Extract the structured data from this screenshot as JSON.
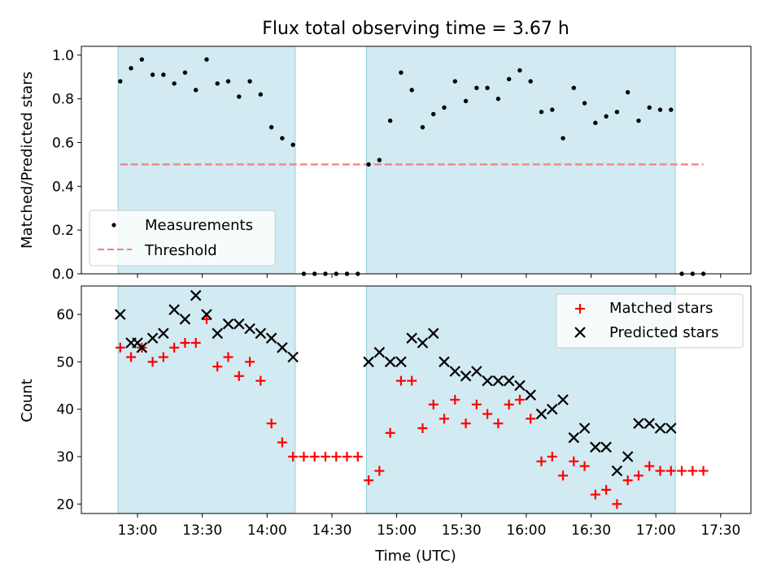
{
  "title": "Flux total observing time = 3.67 h",
  "chart_data": [
    {
      "type": "scatter",
      "panel": "top",
      "ylabel": "Matched/Predicted stars",
      "ylim": [
        0.0,
        1.04
      ],
      "yticks": [
        0.0,
        0.2,
        0.4,
        0.6,
        0.8,
        1.0
      ],
      "ytick_labels": [
        "0.0",
        "0.2",
        "0.4",
        "0.6",
        "0.8",
        "1.0"
      ],
      "legend": {
        "position": "lower-left",
        "entries": [
          "Measurements",
          "Threshold"
        ]
      },
      "series": [
        {
          "name": "Measurements",
          "color": "#000000",
          "points": [
            [
              "12:52",
              0.88
            ],
            [
              "12:57",
              0.94
            ],
            [
              "13:02",
              0.98
            ],
            [
              "13:07",
              0.91
            ],
            [
              "13:12",
              0.91
            ],
            [
              "13:17",
              0.87
            ],
            [
              "13:22",
              0.92
            ],
            [
              "13:27",
              0.84
            ],
            [
              "13:32",
              0.98
            ],
            [
              "13:37",
              0.87
            ],
            [
              "13:42",
              0.88
            ],
            [
              "13:47",
              0.81
            ],
            [
              "13:52",
              0.88
            ],
            [
              "13:57",
              0.82
            ],
            [
              "14:02",
              0.67
            ],
            [
              "14:07",
              0.62
            ],
            [
              "14:12",
              0.59
            ],
            [
              "14:17",
              0.0
            ],
            [
              "14:22",
              0.0
            ],
            [
              "14:27",
              0.0
            ],
            [
              "14:32",
              0.0
            ],
            [
              "14:37",
              0.0
            ],
            [
              "14:42",
              0.0
            ],
            [
              "14:47",
              0.5
            ],
            [
              "14:52",
              0.52
            ],
            [
              "14:57",
              0.7
            ],
            [
              "15:02",
              0.92
            ],
            [
              "15:07",
              0.84
            ],
            [
              "15:12",
              0.67
            ],
            [
              "15:17",
              0.73
            ],
            [
              "15:22",
              0.76
            ],
            [
              "15:27",
              0.88
            ],
            [
              "15:32",
              0.79
            ],
            [
              "15:37",
              0.85
            ],
            [
              "15:42",
              0.85
            ],
            [
              "15:47",
              0.8
            ],
            [
              "15:52",
              0.89
            ],
            [
              "15:57",
              0.93
            ],
            [
              "16:02",
              0.88
            ],
            [
              "16:07",
              0.74
            ],
            [
              "16:12",
              0.75
            ],
            [
              "16:17",
              0.62
            ],
            [
              "16:22",
              0.85
            ],
            [
              "16:27",
              0.78
            ],
            [
              "16:32",
              0.69
            ],
            [
              "16:37",
              0.72
            ],
            [
              "16:42",
              0.74
            ],
            [
              "16:47",
              0.83
            ],
            [
              "16:52",
              0.7
            ],
            [
              "16:57",
              0.76
            ],
            [
              "17:02",
              0.75
            ],
            [
              "17:07",
              0.75
            ],
            [
              "17:12",
              0.0
            ],
            [
              "17:17",
              0.0
            ],
            [
              "17:22",
              0.0
            ]
          ]
        }
      ],
      "threshold": {
        "name": "Threshold",
        "value": 0.5,
        "x_start": "12:52",
        "x_end": "17:22",
        "color": "#f08080",
        "style": "dashed"
      }
    },
    {
      "type": "scatter",
      "panel": "bottom",
      "xlabel": "Time (UTC)",
      "ylabel": "Count",
      "ylim": [
        18,
        66
      ],
      "yticks": [
        20,
        30,
        40,
        50,
        60
      ],
      "ytick_labels": [
        "20",
        "30",
        "40",
        "50",
        "60"
      ],
      "xlim": [
        "12:34",
        "17:44"
      ],
      "xticks": [
        "13:00",
        "13:30",
        "14:00",
        "14:30",
        "15:00",
        "15:30",
        "16:00",
        "16:30",
        "17:00",
        "17:30"
      ],
      "legend": {
        "position": "top-right",
        "entries": [
          "Matched stars",
          "Predicted stars"
        ]
      },
      "series": [
        {
          "name": "Matched stars",
          "marker": "+",
          "color": "#ff0000",
          "points": [
            [
              "12:52",
              53
            ],
            [
              "12:57",
              51
            ],
            [
              "13:02",
              53
            ],
            [
              "13:07",
              50
            ],
            [
              "13:12",
              51
            ],
            [
              "13:17",
              53
            ],
            [
              "13:22",
              54
            ],
            [
              "13:27",
              54
            ],
            [
              "13:32",
              59
            ],
            [
              "13:37",
              49
            ],
            [
              "13:42",
              51
            ],
            [
              "13:47",
              47
            ],
            [
              "13:52",
              50
            ],
            [
              "13:57",
              46
            ],
            [
              "14:02",
              37
            ],
            [
              "14:07",
              33
            ],
            [
              "14:12",
              30
            ],
            [
              "14:17",
              30
            ],
            [
              "14:22",
              30
            ],
            [
              "14:27",
              30
            ],
            [
              "14:32",
              30
            ],
            [
              "14:37",
              30
            ],
            [
              "14:42",
              30
            ],
            [
              "14:47",
              25
            ],
            [
              "14:52",
              27
            ],
            [
              "14:57",
              35
            ],
            [
              "15:02",
              46
            ],
            [
              "15:07",
              46
            ],
            [
              "15:12",
              36
            ],
            [
              "15:17",
              41
            ],
            [
              "15:22",
              38
            ],
            [
              "15:27",
              42
            ],
            [
              "15:32",
              37
            ],
            [
              "15:37",
              41
            ],
            [
              "15:42",
              39
            ],
            [
              "15:47",
              37
            ],
            [
              "15:52",
              41
            ],
            [
              "15:57",
              42
            ],
            [
              "16:02",
              38
            ],
            [
              "16:07",
              29
            ],
            [
              "16:12",
              30
            ],
            [
              "16:17",
              26
            ],
            [
              "16:22",
              29
            ],
            [
              "16:27",
              28
            ],
            [
              "16:32",
              22
            ],
            [
              "16:37",
              23
            ],
            [
              "16:42",
              20
            ],
            [
              "16:47",
              25
            ],
            [
              "16:52",
              26
            ],
            [
              "16:57",
              28
            ],
            [
              "17:02",
              27
            ],
            [
              "17:07",
              27
            ],
            [
              "17:12",
              27
            ],
            [
              "17:17",
              27
            ],
            [
              "17:22",
              27
            ]
          ]
        },
        {
          "name": "Predicted stars",
          "marker": "x",
          "color": "#000000",
          "points": [
            [
              "12:52",
              60
            ],
            [
              "12:57",
              54
            ],
            [
              "13:00",
              54
            ],
            [
              "13:02",
              53
            ],
            [
              "13:07",
              55
            ],
            [
              "13:12",
              56
            ],
            [
              "13:17",
              61
            ],
            [
              "13:22",
              59
            ],
            [
              "13:27",
              64
            ],
            [
              "13:32",
              60
            ],
            [
              "13:37",
              56
            ],
            [
              "13:42",
              58
            ],
            [
              "13:47",
              58
            ],
            [
              "13:52",
              57
            ],
            [
              "13:57",
              56
            ],
            [
              "14:02",
              55
            ],
            [
              "14:07",
              53
            ],
            [
              "14:12",
              51
            ],
            [
              "14:47",
              50
            ],
            [
              "14:52",
              52
            ],
            [
              "14:57",
              50
            ],
            [
              "15:02",
              50
            ],
            [
              "15:07",
              55
            ],
            [
              "15:12",
              54
            ],
            [
              "15:17",
              56
            ],
            [
              "15:22",
              50
            ],
            [
              "15:27",
              48
            ],
            [
              "15:32",
              47
            ],
            [
              "15:37",
              48
            ],
            [
              "15:42",
              46
            ],
            [
              "15:47",
              46
            ],
            [
              "15:52",
              46
            ],
            [
              "15:57",
              45
            ],
            [
              "16:02",
              43
            ],
            [
              "16:07",
              39
            ],
            [
              "16:12",
              40
            ],
            [
              "16:17",
              42
            ],
            [
              "16:22",
              34
            ],
            [
              "16:27",
              36
            ],
            [
              "16:32",
              32
            ],
            [
              "16:37",
              32
            ],
            [
              "16:42",
              27
            ],
            [
              "16:47",
              30
            ],
            [
              "16:52",
              37
            ],
            [
              "16:57",
              37
            ],
            [
              "17:02",
              36
            ],
            [
              "17:07",
              36
            ]
          ]
        }
      ]
    }
  ],
  "shaded_regions": [
    {
      "start": "12:51",
      "end": "14:13",
      "color": "#add8e6"
    },
    {
      "start": "14:46",
      "end": "17:09",
      "color": "#add8e6"
    }
  ]
}
